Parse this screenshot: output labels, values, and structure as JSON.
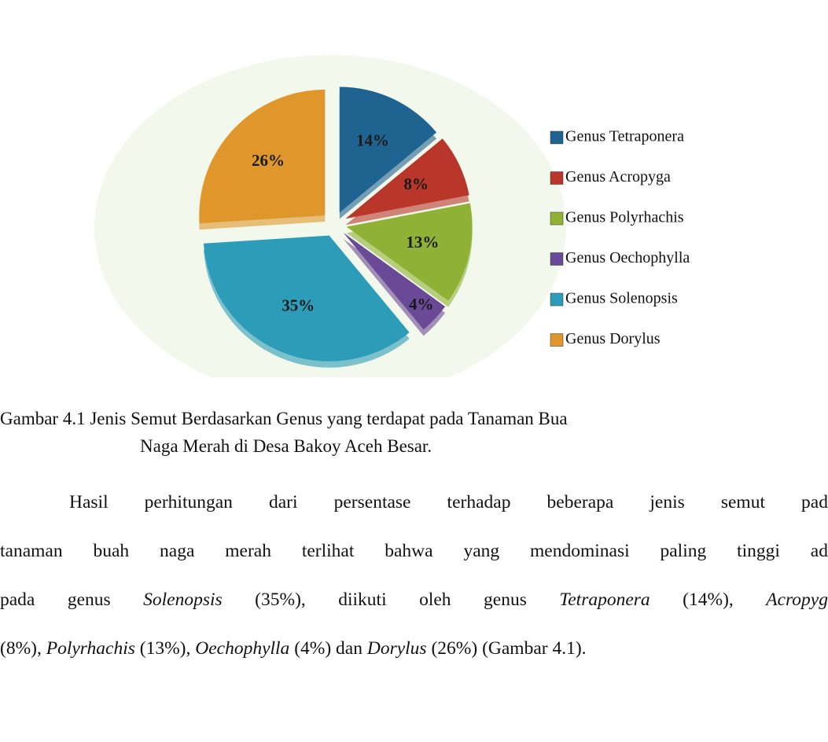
{
  "chart_data": {
    "type": "pie",
    "categories": [
      "Genus Tetraponera",
      "Genus Acropyga",
      "Genus Polyrhachis",
      "Genus Oechophylla",
      "Genus Solenopsis",
      "Genus Dorylus"
    ],
    "values": [
      14,
      8,
      13,
      4,
      35,
      26
    ],
    "value_labels": [
      "14%",
      "8%",
      "13%",
      "4%",
      "35%",
      "26%"
    ],
    "colors": [
      "#1f6390",
      "#b8372a",
      "#8fb236",
      "#6a4a96",
      "#2c9cb8",
      "#df972c"
    ]
  },
  "caption": [
    "Gambar 4.1 Jenis Semut Berdasarkan Genus yang terdapat pada Tanaman Bua",
    "Naga Merah di Desa Bakoy Aceh Besar."
  ],
  "paragraph": [
    [
      {
        "text": "Hasil perhitungan dari persentase terhadap beberapa jenis semut pad",
        "italic": false
      }
    ],
    [
      {
        "text": "tanaman buah naga merah terlihat bahwa yang mendominasi paling tinggi ad",
        "italic": false
      }
    ],
    [
      {
        "text": "pada genus ",
        "italic": false
      },
      {
        "text": "Solenopsis",
        "italic": true
      },
      {
        "text": " (35%), diikuti oleh genus ",
        "italic": false
      },
      {
        "text": "Tetraponera",
        "italic": true
      },
      {
        "text": " (14%), ",
        "italic": false
      },
      {
        "text": "Acropyg",
        "italic": true
      }
    ],
    [
      {
        "text": "(8%), ",
        "italic": false
      },
      {
        "text": "Polyrhachis",
        "italic": true
      },
      {
        "text": " (13%), ",
        "italic": false
      },
      {
        "text": "Oechophylla",
        "italic": true
      },
      {
        "text": " (4%) dan ",
        "italic": false
      },
      {
        "text": "Dorylus",
        "italic": true
      },
      {
        "text": " (26%) (Gambar 4.1).",
        "italic": false
      }
    ]
  ]
}
